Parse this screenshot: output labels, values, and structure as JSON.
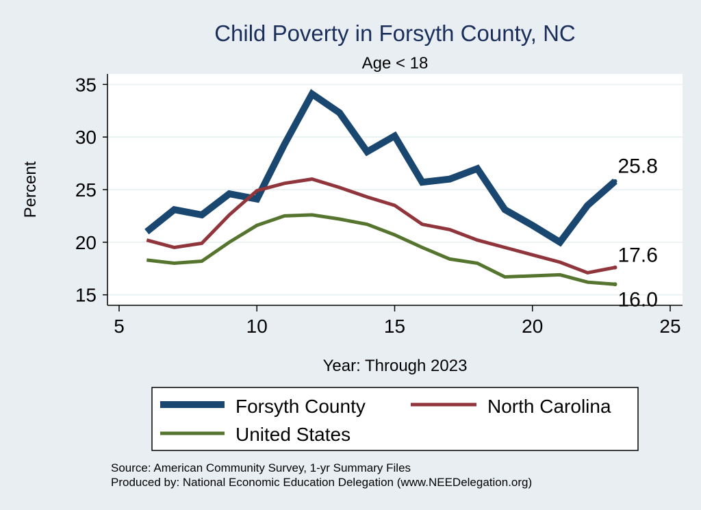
{
  "chart_data": {
    "type": "line",
    "title": "Child Poverty in Forsyth County, NC",
    "subtitle": "Age < 18",
    "xlabel": "Year: Through 2023",
    "ylabel": "Percent",
    "xlim": [
      5,
      25
    ],
    "ylim": [
      14,
      36
    ],
    "xticks": [
      5,
      10,
      15,
      20,
      25
    ],
    "yticks": [
      15,
      20,
      25,
      30,
      35
    ],
    "grid": true,
    "legend_position": "bottom",
    "x": [
      6,
      7,
      8,
      9,
      10,
      11,
      12,
      13,
      14,
      15,
      16,
      17,
      18,
      19,
      20,
      21,
      22,
      23
    ],
    "series": [
      {
        "name": "Forsyth County",
        "color": "#1a476f",
        "values": [
          21.0,
          23.1,
          22.6,
          24.6,
          24.1,
          29.3,
          34.1,
          32.3,
          28.6,
          30.1,
          25.7,
          26.0,
          27.0,
          23.1,
          21.6,
          20.0,
          23.5,
          25.8
        ],
        "end_label": "25.8"
      },
      {
        "name": "North Carolina",
        "color": "#90353b",
        "values": [
          20.2,
          19.5,
          19.9,
          22.6,
          24.9,
          25.6,
          26.0,
          25.2,
          24.3,
          23.5,
          21.7,
          21.2,
          20.2,
          19.5,
          18.8,
          18.1,
          17.1,
          17.6
        ],
        "end_label": "17.6"
      },
      {
        "name": "United States",
        "color": "#55752f",
        "values": [
          18.3,
          18.0,
          18.2,
          20.0,
          21.6,
          22.5,
          22.6,
          22.2,
          21.7,
          20.7,
          19.5,
          18.4,
          18.0,
          16.7,
          16.8,
          16.9,
          16.2,
          16.0
        ],
        "end_label": "16.0"
      }
    ]
  },
  "notes": {
    "source": "Source: American Community Survey, 1-yr Summary Files",
    "produced_by": "Produced by: National Economic Education Delegation (www.NEEDelegation.org)"
  }
}
